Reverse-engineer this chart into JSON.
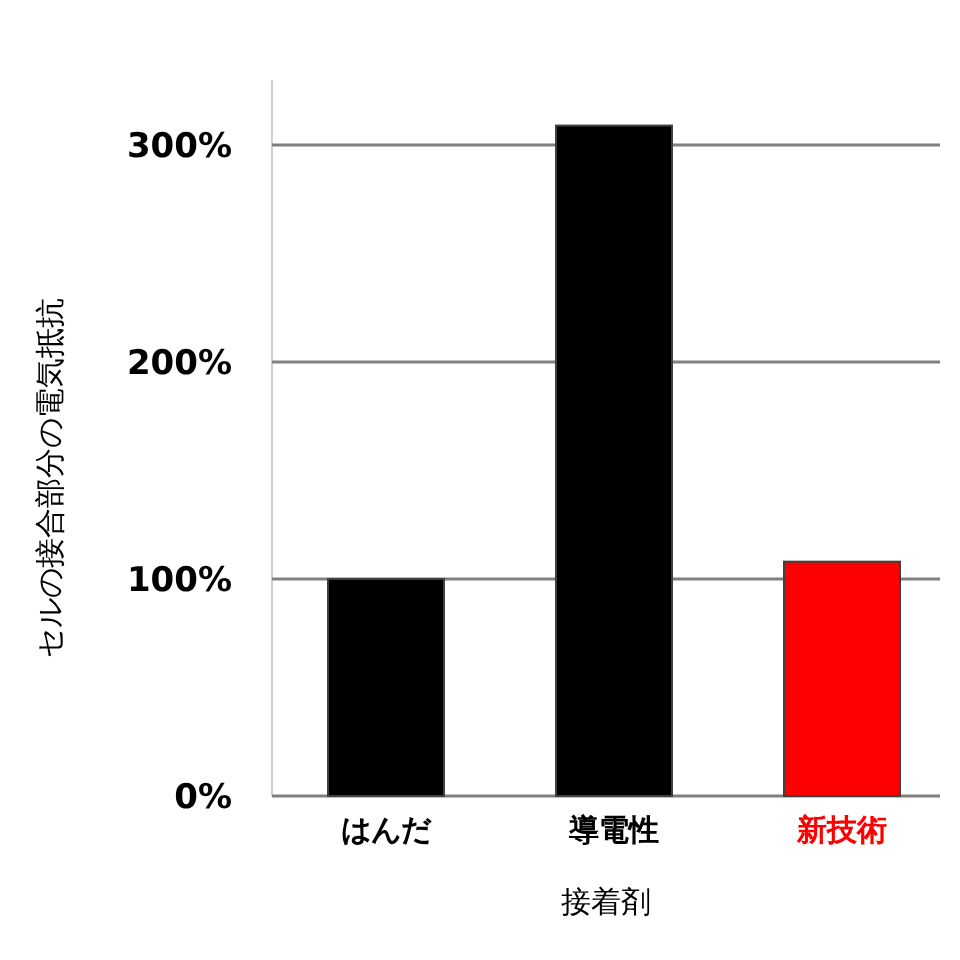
{
  "chart_data": {
    "type": "bar",
    "xlabel": "接着剤",
    "ylabel": "セルの接合部分の電気抵抗",
    "categories": [
      "はんだ",
      "導電性",
      "新技術"
    ],
    "values": [
      100,
      309,
      108
    ],
    "ylim": [
      0,
      330
    ],
    "colors": [
      "#000000",
      "#000000",
      "#ff0000"
    ],
    "yticks": [
      {
        "value": 0,
        "label": "0%"
      },
      {
        "value": 100,
        "label": "100%"
      },
      {
        "value": 200,
        "label": "200%"
      },
      {
        "value": 300,
        "label": "300%"
      }
    ],
    "grid": "y"
  }
}
